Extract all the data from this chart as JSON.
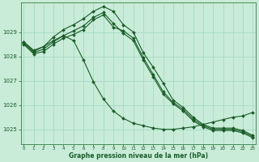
{
  "xlabel": "Graphe pression niveau de la mer (hPa)",
  "background_color": "#c8ecd8",
  "grid_color": "#a8d8c8",
  "line_color": "#1a5c28",
  "ylim": [
    1024.4,
    1030.2
  ],
  "xlim": [
    -0.3,
    23.3
  ],
  "yticks": [
    1025,
    1026,
    1027,
    1028,
    1029
  ],
  "xticks": [
    0,
    1,
    2,
    3,
    4,
    5,
    6,
    7,
    8,
    9,
    10,
    11,
    12,
    13,
    14,
    15,
    16,
    17,
    18,
    19,
    20,
    21,
    22,
    23
  ],
  "figsize": [
    3.2,
    2.0
  ],
  "dpi": 100,
  "series": [
    [
      1028.6,
      1028.2,
      1028.4,
      1028.8,
      1029.1,
      1029.3,
      1029.55,
      1029.85,
      1030.05,
      1029.85,
      1029.3,
      1029.0,
      1028.15,
      1027.55,
      1026.9,
      1026.2,
      1025.9,
      1025.5,
      1025.2,
      1025.05,
      1025.05,
      1025.05,
      1024.95,
      1024.75
    ],
    [
      1028.55,
      1028.15,
      1028.3,
      1028.6,
      1028.85,
      1029.05,
      1029.25,
      1029.6,
      1029.8,
      1029.35,
      1028.95,
      1028.65,
      1027.85,
      1027.15,
      1026.45,
      1026.05,
      1025.75,
      1025.35,
      1025.1,
      1024.95,
      1024.95,
      1024.95,
      1024.85,
      1024.65
    ],
    [
      1028.5,
      1028.1,
      1028.2,
      1028.5,
      1028.75,
      1028.9,
      1029.1,
      1029.5,
      1029.7,
      1029.2,
      1029.05,
      1028.75,
      1027.95,
      1027.25,
      1026.55,
      1026.1,
      1025.82,
      1025.42,
      1025.15,
      1025.0,
      1025.0,
      1025.0,
      1024.9,
      1024.7
    ],
    [
      1028.6,
      1028.25,
      1028.4,
      1028.65,
      1028.85,
      1028.65,
      1027.85,
      1026.95,
      1026.25,
      1025.75,
      1025.45,
      1025.25,
      1025.15,
      1025.05,
      1025.0,
      1025.0,
      1025.05,
      1025.1,
      1025.2,
      1025.3,
      1025.4,
      1025.5,
      1025.55,
      1025.7
    ]
  ]
}
